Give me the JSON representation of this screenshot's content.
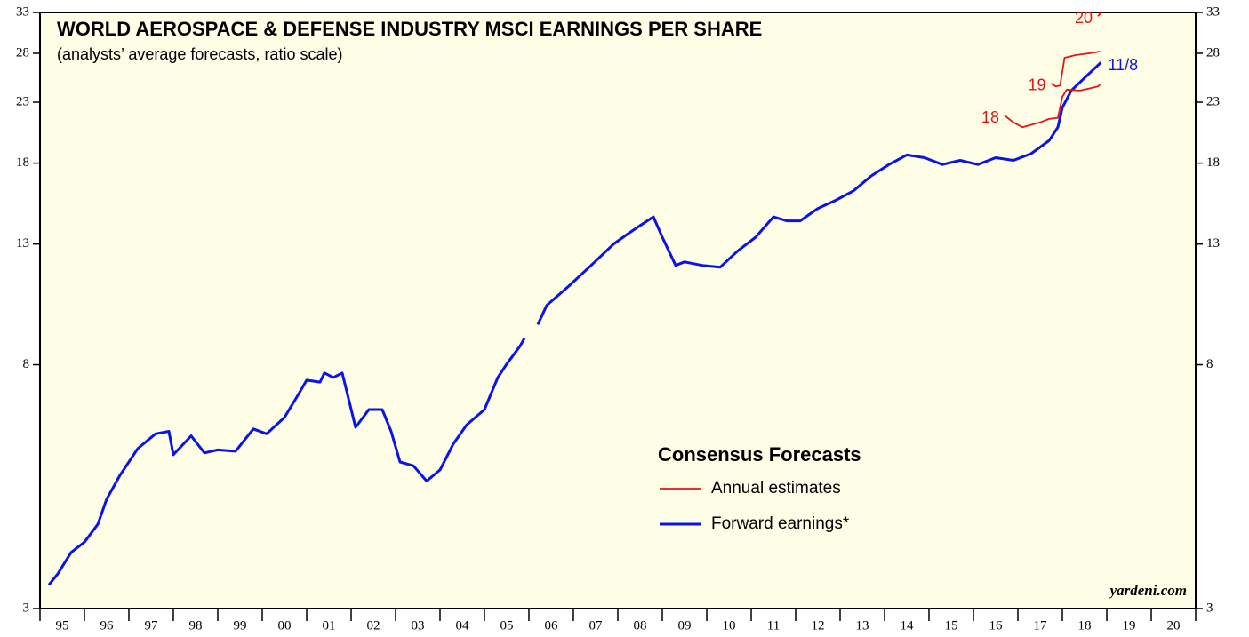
{
  "chart_data": {
    "type": "line",
    "title": "WORLD AEROSPACE & DEFENSE INDUSTRY MSCI EARNINGS PER SHARE",
    "subtitle": "(analysts’ average forecasts, ratio scale)",
    "log_scale": true,
    "ylim": [
      3,
      33
    ],
    "yticks": [
      3,
      8,
      13,
      18,
      23,
      28,
      33
    ],
    "xlim": [
      1995,
      2021
    ],
    "xticks": [
      {
        "value": 1995.5,
        "label": "95"
      },
      {
        "value": 1996.5,
        "label": "96"
      },
      {
        "value": 1997.5,
        "label": "97"
      },
      {
        "value": 1998.5,
        "label": "98"
      },
      {
        "value": 1999.5,
        "label": "99"
      },
      {
        "value": 2000.5,
        "label": "00"
      },
      {
        "value": 2001.5,
        "label": "01"
      },
      {
        "value": 2002.5,
        "label": "02"
      },
      {
        "value": 2003.5,
        "label": "03"
      },
      {
        "value": 2004.5,
        "label": "04"
      },
      {
        "value": 2005.5,
        "label": "05"
      },
      {
        "value": 2006.5,
        "label": "06"
      },
      {
        "value": 2007.5,
        "label": "07"
      },
      {
        "value": 2008.5,
        "label": "08"
      },
      {
        "value": 2009.5,
        "label": "09"
      },
      {
        "value": 2010.5,
        "label": "10"
      },
      {
        "value": 2011.5,
        "label": "11"
      },
      {
        "value": 2012.5,
        "label": "12"
      },
      {
        "value": 2013.5,
        "label": "13"
      },
      {
        "value": 2014.5,
        "label": "14"
      },
      {
        "value": 2015.5,
        "label": "15"
      },
      {
        "value": 2016.5,
        "label": "16"
      },
      {
        "value": 2017.5,
        "label": "17"
      },
      {
        "value": 2018.5,
        "label": "18"
      },
      {
        "value": 2019.5,
        "label": "19"
      },
      {
        "value": 2020.5,
        "label": "20"
      }
    ],
    "legend_title": "Consensus Forecasts",
    "series": [
      {
        "name": "Forward earnings*",
        "color": "#0a14e6",
        "end_label": "11/8",
        "x": [
          1995.2,
          1995.4,
          1995.7,
          1996.0,
          1996.3,
          1996.5,
          1996.8,
          1997.2,
          1997.6,
          1997.9,
          1998.0,
          1998.4,
          1998.7,
          1999.0,
          1999.4,
          1999.8,
          2000.1,
          2000.5,
          2000.8,
          2001.0,
          2001.3,
          2001.4,
          2001.6,
          2001.8,
          2002.1,
          2002.4,
          2002.7,
          2002.9,
          2003.1,
          2003.4,
          2003.7,
          2004.0,
          2004.3,
          2004.6,
          2005.0,
          2005.3,
          2005.5,
          2005.8,
          2005.9,
          2006.1,
          2006.2,
          2006.4,
          2006.9,
          2007.4,
          2007.9,
          2008.2,
          2008.5,
          2008.8,
          2009.0,
          2009.3,
          2009.5,
          2009.9,
          2010.3,
          2010.7,
          2011.1,
          2011.5,
          2011.8,
          2012.1,
          2012.5,
          2012.9,
          2013.3,
          2013.7,
          2014.1,
          2014.5,
          2014.9,
          2015.3,
          2015.7,
          2016.1,
          2016.5,
          2016.9,
          2017.3,
          2017.7,
          2017.9,
          2018.0,
          2018.2,
          2018.6,
          2018.87
        ],
        "values": [
          3.3,
          3.45,
          3.76,
          3.92,
          4.21,
          4.66,
          5.13,
          5.71,
          6.06,
          6.12,
          5.57,
          6.01,
          5.61,
          5.68,
          5.65,
          6.18,
          6.06,
          6.47,
          7.07,
          7.52,
          7.46,
          7.74,
          7.6,
          7.74,
          6.22,
          6.68,
          6.68,
          6.12,
          5.41,
          5.33,
          5.01,
          5.24,
          5.82,
          6.28,
          6.68,
          7.6,
          8.02,
          8.62,
          8.9,
          null,
          9.4,
          10.16,
          10.98,
          11.93,
          12.99,
          13.5,
          14.0,
          14.5,
          13.36,
          11.93,
          12.1,
          11.93,
          11.84,
          12.65,
          13.36,
          14.5,
          14.27,
          14.27,
          15.0,
          15.5,
          16.1,
          17.1,
          17.9,
          18.6,
          18.4,
          17.9,
          18.2,
          17.9,
          18.4,
          18.2,
          18.7,
          19.7,
          20.8,
          22.5,
          24.1,
          25.8,
          27.0
        ]
      },
      {
        "name": "Annual estimates",
        "color": "#e61414",
        "segments": [
          {
            "label": "18",
            "x": [
              2016.7,
              2016.9,
              2017.1,
              2017.3,
              2017.5,
              2017.7,
              2017.9,
              2018.0,
              2018.1,
              2018.4,
              2018.6,
              2018.8,
              2018.85
            ],
            "values": [
              21.8,
              21.2,
              20.8,
              21.0,
              21.2,
              21.5,
              21.6,
              23.5,
              24.2,
              24.1,
              24.3,
              24.5,
              24.7
            ]
          },
          {
            "label": "19",
            "x": [
              2017.75,
              2017.85,
              2017.95,
              2018.05,
              2018.3,
              2018.6,
              2018.85
            ],
            "values": [
              24.8,
              24.5,
              24.6,
              27.5,
              27.8,
              28.0,
              28.2
            ]
          },
          {
            "label": "20",
            "x": [
              2018.8,
              2018.87
            ],
            "values": [
              32.5,
              33.0
            ]
          }
        ]
      }
    ],
    "source": "yardeni.com"
  }
}
